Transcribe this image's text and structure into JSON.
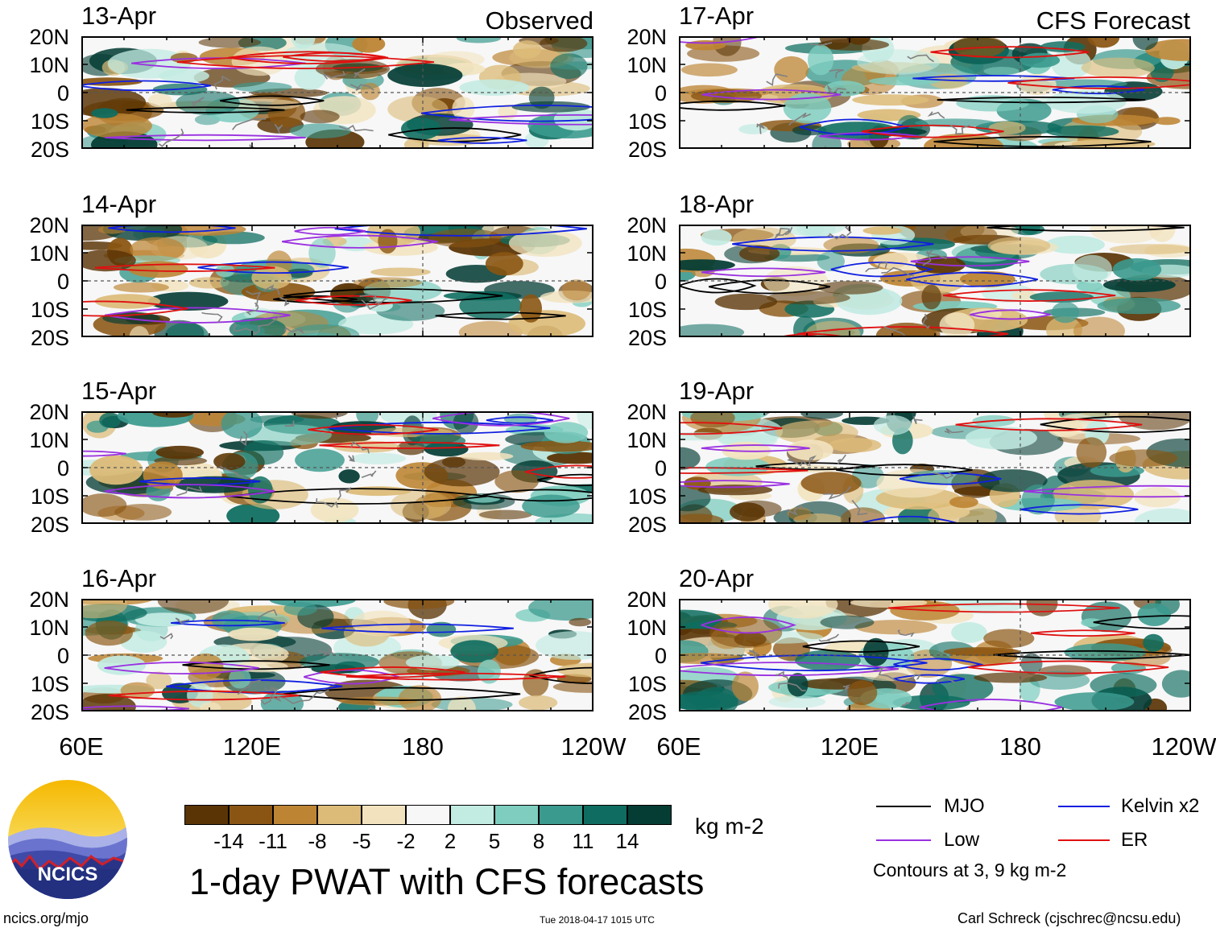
{
  "headers": {
    "left": "Observed",
    "right": "CFS Forecast"
  },
  "lat_labels": [
    "20N",
    "10N",
    "0",
    "10S",
    "20S"
  ],
  "lon_labels": [
    "60E",
    "120E",
    "180",
    "120W"
  ],
  "panels": {
    "left": [
      {
        "date": "13-Apr"
      },
      {
        "date": "14-Apr"
      },
      {
        "date": "15-Apr"
      },
      {
        "date": "16-Apr"
      }
    ],
    "right": [
      {
        "date": "17-Apr"
      },
      {
        "date": "18-Apr"
      },
      {
        "date": "19-Apr"
      },
      {
        "date": "20-Apr"
      }
    ]
  },
  "colorbar": {
    "labels": [
      "-14",
      "-11",
      "-8",
      "-5",
      "-2",
      "2",
      "5",
      "8",
      "11",
      "14"
    ],
    "colors": [
      "#5a3405",
      "#8a5512",
      "#bd8433",
      "#dcbb78",
      "#f2e3be",
      "#f7f7f7",
      "#c2ebe2",
      "#7ecdbf",
      "#3b9a8e",
      "#0e6d60",
      "#053d35"
    ],
    "units": "kg m-2"
  },
  "title": "1-day PWAT with CFS forecasts",
  "legend": {
    "items": [
      {
        "label": "MJO",
        "color": "#000000"
      },
      {
        "label": "Kelvin x2",
        "color": "#1020e0"
      },
      {
        "label": "Low",
        "color": "#9a30e0"
      },
      {
        "label": "ER",
        "color": "#e01010"
      }
    ],
    "note": "Contours at 3, 9 kg m-2"
  },
  "logo": {
    "text": "NCICS"
  },
  "footer": {
    "left": "ncics.org/mjo",
    "center": "Tue 2018-04-17 1015 UTC",
    "right": "Carl Schreck (cjschrec@ncsu.edu)"
  }
}
